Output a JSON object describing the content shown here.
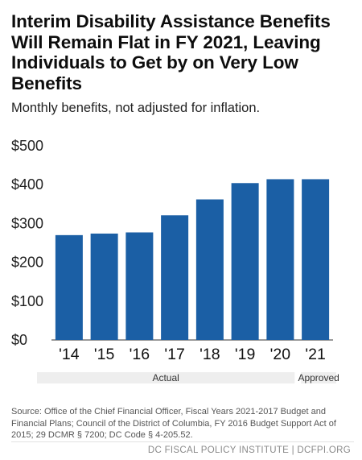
{
  "chart_data": {
    "type": "bar",
    "title": "Interim Disability Assistance Benefits Will Remain Flat in FY 2021, Leaving Individuals to Get by on Very Low Benefits",
    "subtitle": "Monthly benefits, not adjusted for inflation.",
    "categories": [
      "'14",
      "'15",
      "'16",
      "'17",
      "'18",
      "'19",
      "'20",
      "'21"
    ],
    "values": [
      270,
      274,
      277,
      321,
      362,
      404,
      414,
      414
    ],
    "ylim": [
      0,
      500
    ],
    "yticks": [
      0,
      100,
      200,
      300,
      400,
      500
    ],
    "ytick_labels": [
      "$0",
      "$100",
      "$200",
      "$300",
      "$400",
      "$500"
    ],
    "grid": false,
    "bar_color": "#1b5fa5",
    "groups": [
      {
        "label": "Actual",
        "from": 0,
        "to": 6
      },
      {
        "label": "Approved",
        "from": 7,
        "to": 7
      }
    ]
  },
  "source_text": "Source: Office of the Chief Financial Officer, Fiscal Years 2021-2017 Budget and Financial Plans; Council of the District of Columbia, FY 2016 Budget Support Act of 2015; 29 DCMR § 7200; DC Code § 4-205.52.",
  "footer_text": "DC FISCAL POLICY INSTITUTE | DCFPI.ORG"
}
